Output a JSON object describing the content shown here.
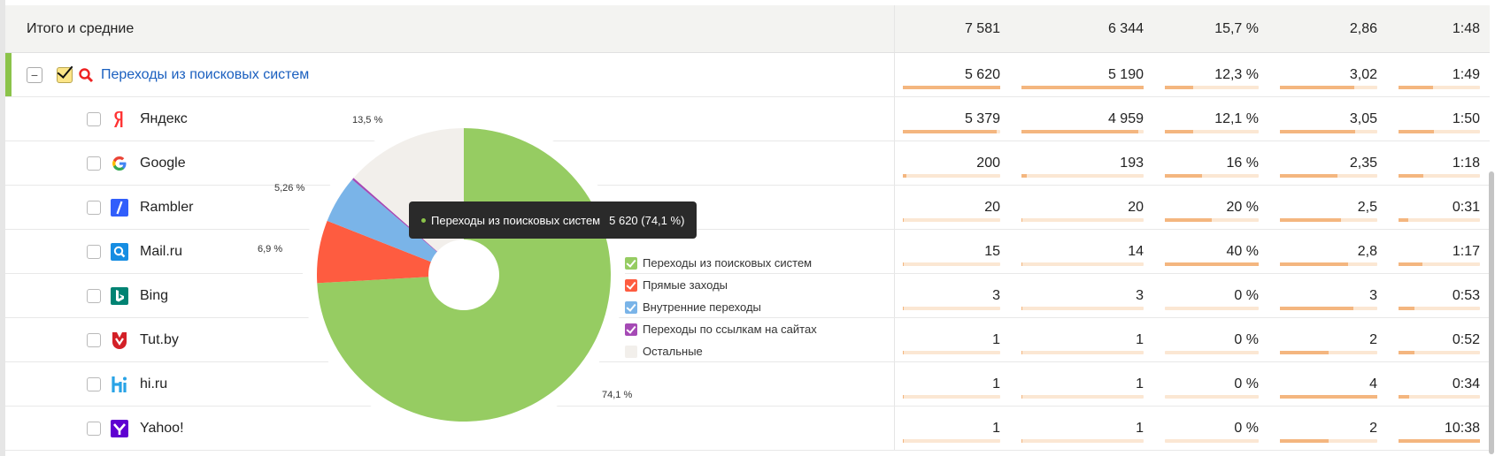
{
  "rows": [
    {
      "type": "total",
      "label": "Итого и средние",
      "values": [
        "7 581",
        "6 344",
        "15,7 %",
        "2,86",
        "1:48"
      ]
    },
    {
      "type": "group",
      "label": "Переходы из поисковых систем",
      "values": [
        "5 620",
        "5 190",
        "12,3 %",
        "3,02",
        "1:49"
      ],
      "bars": [
        1.0,
        1.0,
        0.3,
        0.76,
        0.42
      ]
    },
    {
      "type": "child",
      "label": "Яндекс",
      "icon": "yandex-icon",
      "values": [
        "5 379",
        "4 959",
        "12,1 %",
        "3,05",
        "1:50"
      ],
      "bars": [
        0.96,
        0.96,
        0.3,
        0.77,
        0.43
      ]
    },
    {
      "type": "child",
      "label": "Google",
      "icon": "google-icon",
      "values": [
        "200",
        "193",
        "16 %",
        "2,35",
        "1:18"
      ],
      "bars": [
        0.04,
        0.04,
        0.4,
        0.59,
        0.3
      ]
    },
    {
      "type": "child",
      "label": "Rambler",
      "icon": "rambler-icon",
      "values": [
        "20",
        "20",
        "20 %",
        "2,5",
        "0:31"
      ],
      "bars": [
        0.01,
        0.01,
        0.5,
        0.63,
        0.12
      ]
    },
    {
      "type": "child",
      "label": "Mail.ru",
      "icon": "mailru-icon",
      "values": [
        "15",
        "14",
        "40 %",
        "2,8",
        "1:17"
      ],
      "bars": [
        0.01,
        0.01,
        1.0,
        0.7,
        0.29
      ]
    },
    {
      "type": "child",
      "label": "Bing",
      "icon": "bing-icon",
      "values": [
        "3",
        "3",
        "0 %",
        "3",
        "0:53"
      ],
      "bars": [
        0.005,
        0.005,
        0.0,
        0.75,
        0.2
      ]
    },
    {
      "type": "child",
      "label": "Tut.by",
      "icon": "tutby-icon",
      "values": [
        "1",
        "1",
        "0 %",
        "2",
        "0:52"
      ],
      "bars": [
        0.003,
        0.003,
        0.0,
        0.5,
        0.2
      ]
    },
    {
      "type": "child",
      "label": "hi.ru",
      "icon": "hiru-icon",
      "values": [
        "1",
        "1",
        "0 %",
        "4",
        "0:34"
      ],
      "bars": [
        0.003,
        0.003,
        0.0,
        1.0,
        0.13
      ]
    },
    {
      "type": "child",
      "label": "Yahoo!",
      "icon": "yahoo-icon",
      "values": [
        "1",
        "1",
        "0 %",
        "2",
        "10:38"
      ],
      "bars": [
        0.003,
        0.003,
        0.0,
        0.5,
        1.0
      ]
    }
  ],
  "chart_data": {
    "type": "pie",
    "donut": true,
    "slices": [
      {
        "name": "Переходы из поисковых систем",
        "value": 74.1,
        "label": "74,1 %",
        "color": "#96cc62"
      },
      {
        "name": "Прямые заходы",
        "value": 6.9,
        "label": "6,9 %",
        "color": "#fe5c40"
      },
      {
        "name": "Внутренние переходы",
        "value": 5.26,
        "label": "5,26 %",
        "color": "#7ab4e8"
      },
      {
        "name": "Переходы по ссылкам на сайтах",
        "value": 0.24,
        "label": "",
        "color": "#a54ab5"
      },
      {
        "name": "Остальные",
        "value": 13.5,
        "label": "13,5 %",
        "color": "#f2efeb"
      }
    ],
    "legend_placement": "right"
  },
  "tooltip": {
    "label": "Переходы из поисковых систем",
    "value": "5 620 (74,1 %)"
  },
  "colors": {
    "accent_green": "#8bc34a",
    "bar_fill": "#f4b67f",
    "bar_track": "#fbe7d3",
    "link": "#1a5fbf"
  }
}
